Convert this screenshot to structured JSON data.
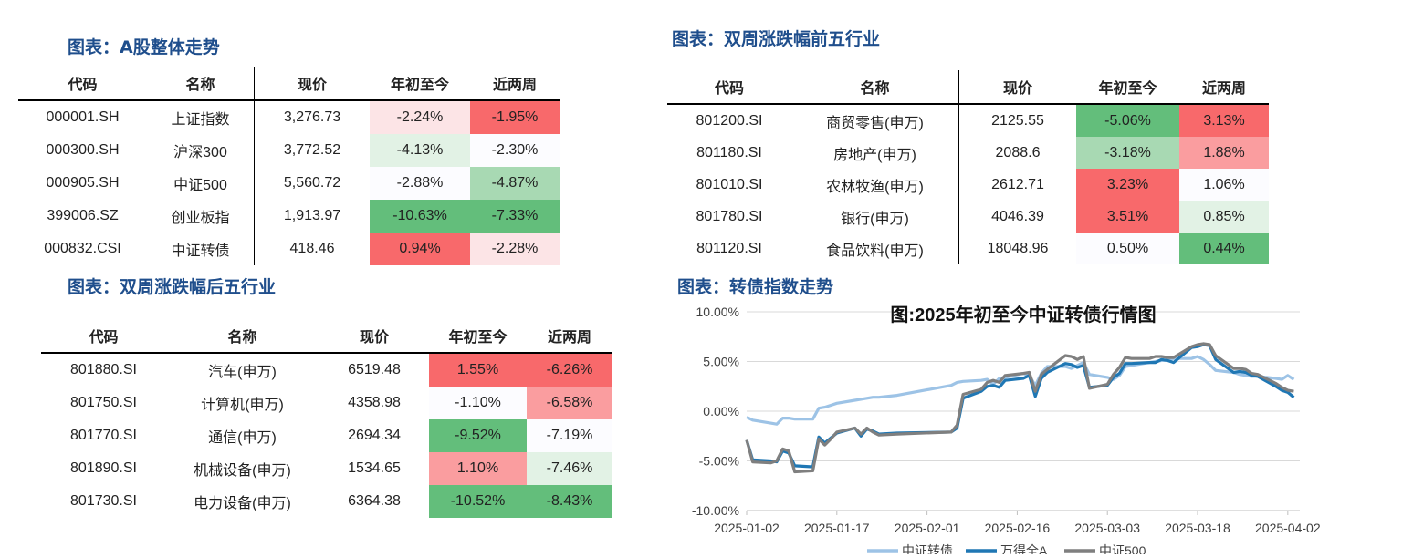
{
  "colors": {
    "title": "#1f4e8c",
    "red_strong": "#f8696b",
    "red_mid": "#fa9d9f",
    "red_light": "#fce4e6",
    "green_strong": "#63be7b",
    "green_mid": "#a8d9b3",
    "green_light": "#e2f2e5",
    "neutral": "#fcfcff",
    "series_cb": "#9dc3e6",
    "series_wind": "#1f77b4",
    "series_500": "#7f7f7f"
  },
  "titles": {
    "a_share": "图表：A股整体走势",
    "top5": "图表：双周涨跌幅前五行业",
    "bottom5": "图表：双周涨跌幅后五行业",
    "cb_trend": "图表：转债指数走势"
  },
  "headers": [
    "代码",
    "名称",
    "现价",
    "年初至今",
    "近两周"
  ],
  "tables": {
    "a_share": [
      {
        "code": "000001.SH",
        "name": "上证指数",
        "price": "3,276.73",
        "ytd": "-2.24%",
        "ytd_c": "red_light",
        "w2": "-1.95%",
        "w2_c": "red_strong"
      },
      {
        "code": "000300.SH",
        "name": "沪深300",
        "price": "3,772.52",
        "ytd": "-4.13%",
        "ytd_c": "green_light",
        "w2": "-2.30%",
        "w2_c": "neutral"
      },
      {
        "code": "000905.SH",
        "name": "中证500",
        "price": "5,560.72",
        "ytd": "-2.88%",
        "ytd_c": "neutral",
        "w2": "-4.87%",
        "w2_c": "green_mid"
      },
      {
        "code": "399006.SZ",
        "name": "创业板指",
        "price": "1,913.97",
        "ytd": "-10.63%",
        "ytd_c": "green_strong",
        "w2": "-7.33%",
        "w2_c": "green_strong"
      },
      {
        "code": "000832.CSI",
        "name": "中证转债",
        "price": "418.46",
        "ytd": "0.94%",
        "ytd_c": "red_strong",
        "w2": "-2.28%",
        "w2_c": "red_light"
      }
    ],
    "top5": [
      {
        "code": "801200.SI",
        "name": "商贸零售(申万)",
        "price": "2125.55",
        "ytd": "-5.06%",
        "ytd_c": "green_strong",
        "w2": "3.13%",
        "w2_c": "red_strong"
      },
      {
        "code": "801180.SI",
        "name": "房地产(申万)",
        "price": "2088.6",
        "ytd": "-3.18%",
        "ytd_c": "green_mid",
        "w2": "1.88%",
        "w2_c": "red_mid"
      },
      {
        "code": "801010.SI",
        "name": "农林牧渔(申万)",
        "price": "2612.71",
        "ytd": "3.23%",
        "ytd_c": "red_strong",
        "w2": "1.06%",
        "w2_c": "neutral"
      },
      {
        "code": "801780.SI",
        "name": "银行(申万)",
        "price": "4046.39",
        "ytd": "3.51%",
        "ytd_c": "red_strong",
        "w2": "0.85%",
        "w2_c": "green_light"
      },
      {
        "code": "801120.SI",
        "name": "食品饮料(申万)",
        "price": "18048.96",
        "ytd": "0.50%",
        "ytd_c": "neutral",
        "w2": "0.44%",
        "w2_c": "green_strong"
      }
    ],
    "bottom5": [
      {
        "code": "801880.SI",
        "name": "汽车(申万)",
        "price": "6519.48",
        "ytd": "1.55%",
        "ytd_c": "red_strong",
        "w2": "-6.26%",
        "w2_c": "red_strong"
      },
      {
        "code": "801750.SI",
        "name": "计算机(申万)",
        "price": "4358.98",
        "ytd": "-1.10%",
        "ytd_c": "neutral",
        "w2": "-6.58%",
        "w2_c": "red_mid"
      },
      {
        "code": "801770.SI",
        "name": "通信(申万)",
        "price": "2694.34",
        "ytd": "-9.52%",
        "ytd_c": "green_strong",
        "w2": "-7.19%",
        "w2_c": "neutral"
      },
      {
        "code": "801890.SI",
        "name": "机械设备(申万)",
        "price": "1534.65",
        "ytd": "1.10%",
        "ytd_c": "red_mid",
        "w2": "-7.46%",
        "w2_c": "green_light"
      },
      {
        "code": "801730.SI",
        "name": "电力设备(申万)",
        "price": "6364.38",
        "ytd": "-10.52%",
        "ytd_c": "green_strong",
        "w2": "-8.43%",
        "w2_c": "green_strong"
      }
    ]
  },
  "chart_data": {
    "type": "line",
    "title": "图:2025年初至今中证转债行情图",
    "x": [
      "2025-01-02",
      "2025-01-03",
      "2025-01-06",
      "2025-01-07",
      "2025-01-08",
      "2025-01-09",
      "2025-01-10",
      "2025-01-13",
      "2025-01-14",
      "2025-01-15",
      "2025-01-16",
      "2025-01-17",
      "2025-01-20",
      "2025-01-21",
      "2025-01-22",
      "2025-01-23",
      "2025-01-24",
      "2025-01-27",
      "2025-02-05",
      "2025-02-06",
      "2025-02-07",
      "2025-02-10",
      "2025-02-11",
      "2025-02-12",
      "2025-02-13",
      "2025-02-14",
      "2025-02-17",
      "2025-02-18",
      "2025-02-19",
      "2025-02-20",
      "2025-02-21",
      "2025-02-24",
      "2025-02-25",
      "2025-02-26",
      "2025-02-27",
      "2025-02-28",
      "2025-03-03",
      "2025-03-04",
      "2025-03-05",
      "2025-03-06",
      "2025-03-07",
      "2025-03-10",
      "2025-03-11",
      "2025-03-12",
      "2025-03-13",
      "2025-03-14",
      "2025-03-17",
      "2025-03-18",
      "2025-03-19",
      "2025-03-20",
      "2025-03-21",
      "2025-03-24",
      "2025-03-25",
      "2025-03-26",
      "2025-03-27",
      "2025-03-28",
      "2025-03-31",
      "2025-04-01",
      "2025-04-02",
      "2025-04-03"
    ],
    "series": [
      {
        "name": "中证转债",
        "color_key": "series_cb",
        "values": [
          -0.6,
          -0.9,
          -1.2,
          -1.3,
          -0.7,
          -0.7,
          -0.8,
          -0.8,
          0.3,
          0.4,
          0.6,
          0.8,
          1.1,
          1.2,
          1.3,
          1.4,
          1.4,
          1.6,
          2.6,
          2.9,
          3.0,
          3.1,
          3.2,
          2.7,
          3.3,
          3.4,
          3.8,
          3.6,
          2.6,
          3.8,
          4.5,
          4.5,
          4.3,
          4.6,
          4.9,
          3.7,
          3.4,
          3.2,
          3.6,
          4.5,
          4.6,
          4.9,
          5.0,
          5.1,
          5.1,
          5.3,
          5.3,
          5.5,
          5.2,
          4.7,
          4.1,
          3.9,
          3.7,
          3.6,
          3.5,
          3.5,
          3.3,
          3.2,
          3.6,
          3.2
        ]
      },
      {
        "name": "万得全A",
        "color_key": "series_wind",
        "values": [
          -2.9,
          -4.9,
          -5.0,
          -5.1,
          -4.0,
          -4.2,
          -5.5,
          -5.6,
          -2.6,
          -3.2,
          -2.7,
          -2.2,
          -1.7,
          -2.5,
          -1.8,
          -2.0,
          -2.3,
          -2.2,
          -2.1,
          -1.7,
          1.3,
          2.0,
          2.5,
          2.6,
          2.4,
          3.1,
          3.3,
          3.6,
          1.5,
          3.3,
          3.9,
          4.8,
          4.7,
          4.4,
          4.6,
          2.4,
          2.6,
          3.4,
          3.8,
          4.8,
          4.8,
          4.9,
          4.9,
          5.2,
          5.1,
          4.9,
          6.4,
          6.5,
          6.7,
          6.6,
          5.2,
          3.9,
          4.0,
          3.9,
          3.6,
          3.5,
          2.5,
          2.1,
          1.9,
          1.4
        ]
      },
      {
        "name": "中证500",
        "color_key": "series_500",
        "values": [
          -2.9,
          -5.1,
          -5.2,
          -5.0,
          -3.8,
          -4.0,
          -6.1,
          -6.0,
          -2.8,
          -3.4,
          -2.8,
          -2.1,
          -1.7,
          -2.3,
          -1.7,
          -2.1,
          -2.4,
          -2.3,
          -2.1,
          -1.4,
          1.7,
          2.2,
          2.9,
          3.1,
          2.9,
          3.6,
          3.8,
          3.9,
          2.0,
          3.7,
          4.2,
          5.6,
          5.5,
          5.2,
          5.5,
          2.3,
          2.7,
          3.7,
          4.4,
          5.4,
          5.3,
          5.3,
          5.5,
          5.5,
          5.4,
          5.4,
          6.5,
          6.7,
          6.8,
          6.7,
          5.6,
          4.3,
          4.3,
          4.2,
          3.8,
          3.7,
          2.8,
          2.4,
          2.1,
          2.0
        ]
      }
    ],
    "ylim": [
      -10,
      10
    ],
    "yticks": [
      "10.00%",
      "5.00%",
      "0.00%",
      "-5.00%",
      "-10.00%"
    ],
    "xtick_labels": [
      "2025-01-02",
      "2025-01-17",
      "2025-02-01",
      "2025-02-16",
      "2025-03-03",
      "2025-03-18",
      "2025-04-02"
    ],
    "grid": true,
    "legend": "bottom"
  }
}
